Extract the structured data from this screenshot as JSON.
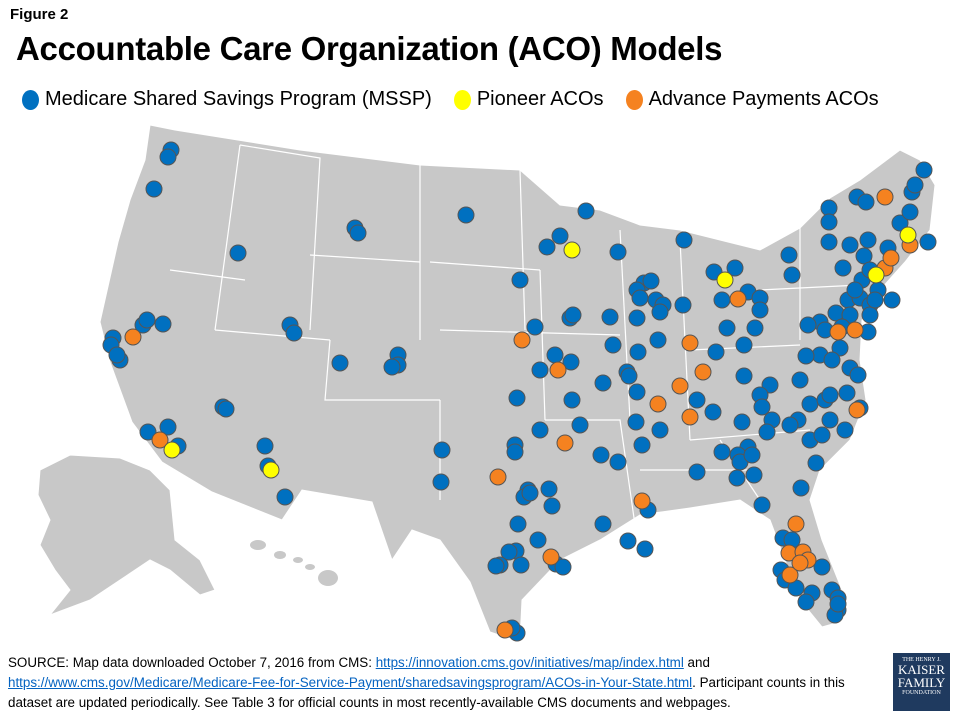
{
  "figure_label": "Figure 2",
  "title": "Accountable Care Organization (ACO) Models",
  "legend": [
    {
      "label": "Medicare Shared Savings Program (MSSP)",
      "color": "#0070C0"
    },
    {
      "label": "Pioneer ACOs",
      "color": "#FFFF00"
    },
    {
      "label": "Advance Payments ACOs",
      "color": "#F58220"
    }
  ],
  "map": {
    "land_color": "#C8C8C8",
    "border_color": "#FFFFFF",
    "region": "United States"
  },
  "source": {
    "prefix": "SOURCE: Map data downloaded  October 7, 2016 from CMS: ",
    "link1": "https://innovation.cms.gov/initiatives/map/index.html",
    "mid": "  and ",
    "link2": "https://www.cms.gov/Medicare/Medicare-Fee-for-Service-Payment/sharedsavingsprogram/ACOs-in-Your-State.html",
    "suffix": ".  Participant counts in this dataset are updated periodically. See Table 3 for official counts in most recently-available CMS documents and webpages."
  },
  "logo": {
    "line1": "THE HENRY J.",
    "line2": "KAISER",
    "line3": "FAMILY",
    "line4": "FOUNDATION"
  }
}
